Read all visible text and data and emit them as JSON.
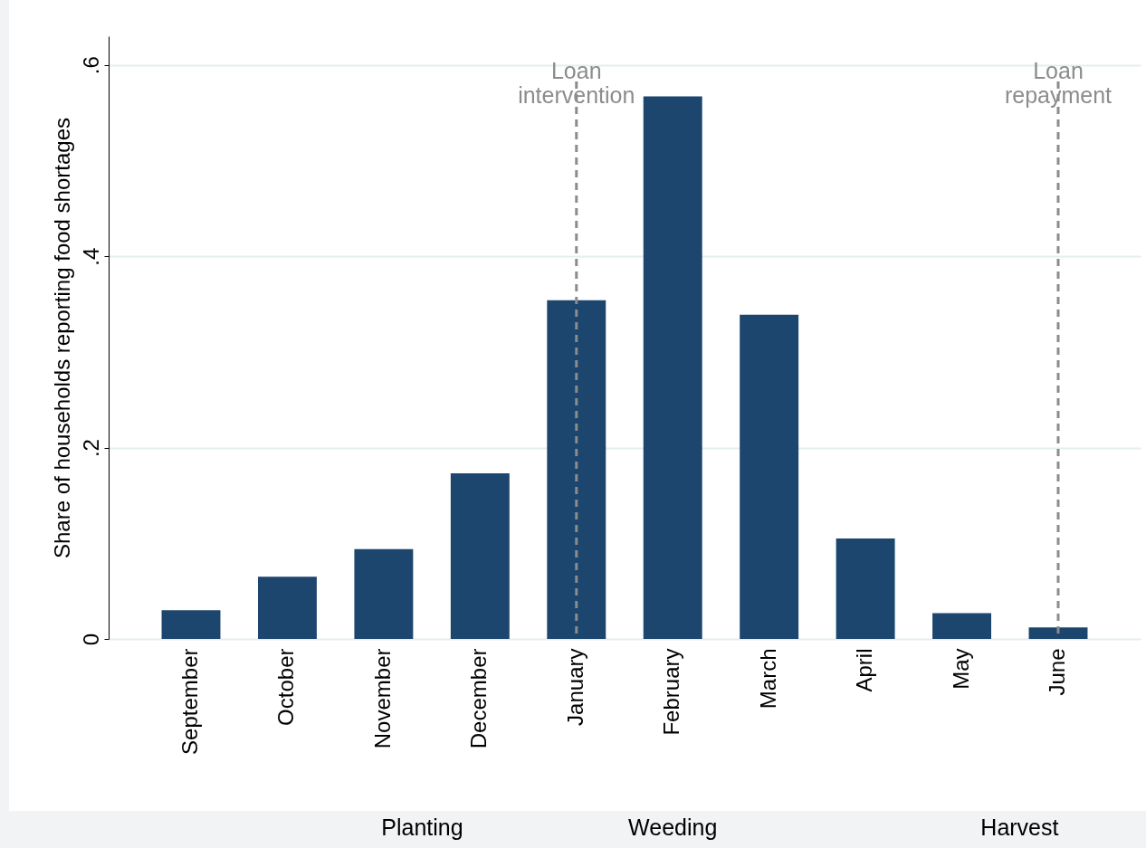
{
  "chart_data": {
    "type": "bar",
    "ylabel": "Share of households reporting food shortages",
    "categories": [
      "September",
      "October",
      "November",
      "December",
      "January",
      "February",
      "March",
      "April",
      "May",
      "June"
    ],
    "values": [
      0.03,
      0.065,
      0.094,
      0.173,
      0.354,
      0.567,
      0.339,
      0.105,
      0.027,
      0.012
    ],
    "color": "#1c466e",
    "ylim": [
      0,
      0.63
    ],
    "yticks": [
      {
        "value": 0,
        "label": "0"
      },
      {
        "value": 0.2,
        "label": ".2"
      },
      {
        "value": 0.4,
        "label": ".4"
      },
      {
        "value": 0.6,
        "label": ".6"
      }
    ],
    "grid": "y",
    "ref_lines": [
      {
        "axis": "x",
        "value": "January",
        "label": "Loan\nintervention",
        "color": "#8c8c8c",
        "line_style": "dashed"
      },
      {
        "axis": "x",
        "value": "June",
        "label": "Loan\nrepayment",
        "color": "#8c8c8c",
        "line_style": "dashed"
      }
    ],
    "annotations": [
      "Planting",
      "Weeding",
      "Harvest"
    ]
  }
}
